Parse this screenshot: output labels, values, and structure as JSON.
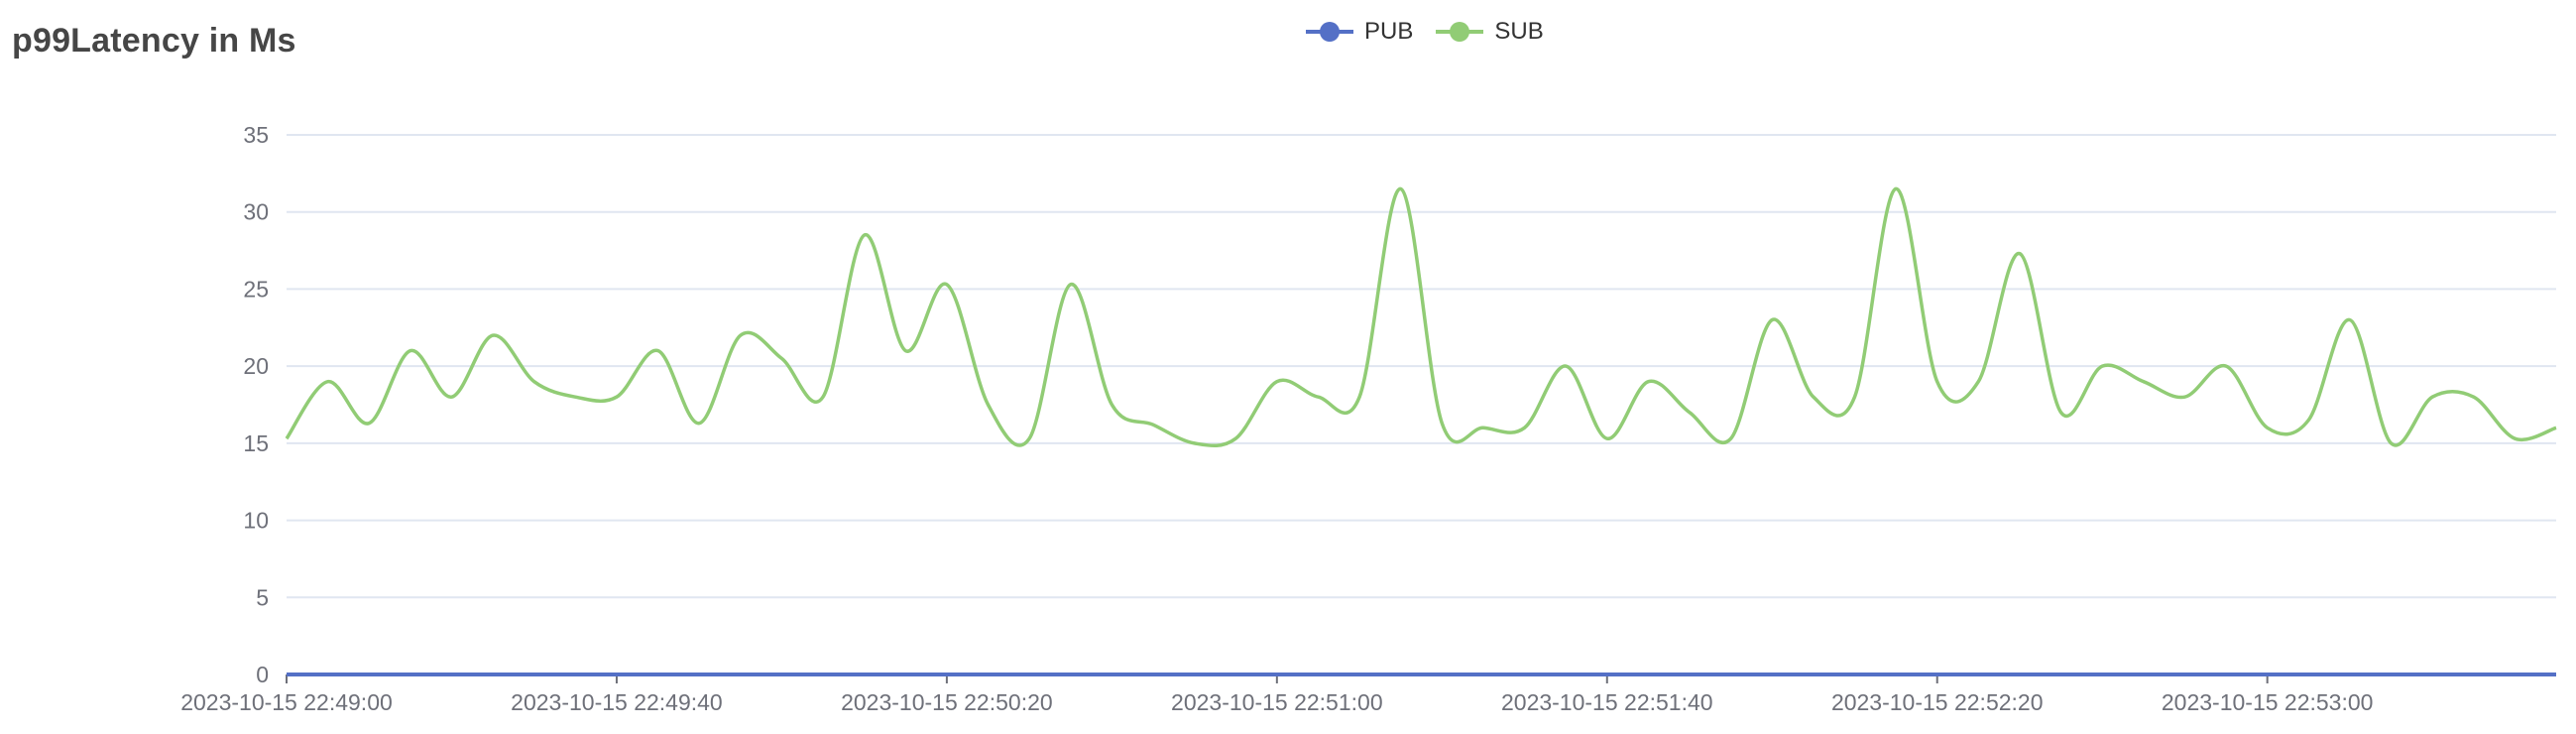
{
  "chart_data": {
    "type": "line",
    "title": "p99Latency in Ms",
    "xlabel": "",
    "ylabel": "",
    "ylim": [
      0,
      35
    ],
    "y_ticks": [
      "0",
      "5",
      "10",
      "15",
      "20",
      "25",
      "30",
      "35"
    ],
    "x_tick_labels": [
      "2023-10-15 22:49:00",
      "2023-10-15 22:49:40",
      "2023-10-15 22:50:20",
      "2023-10-15 22:51:00",
      "2023-10-15 22:51:40",
      "2023-10-15 22:52:20",
      "2023-10-15 22:53:00"
    ],
    "x_unit": "seconds after 2023-10-15 22:49:00",
    "xlim": [
      0,
      275
    ],
    "grid": true,
    "legend_position": "top-center",
    "colors": {
      "PUB": "#5470c6",
      "SUB": "#91cc75"
    },
    "series": [
      {
        "name": "PUB",
        "x": [
          0,
          275
        ],
        "values": [
          0,
          0
        ]
      },
      {
        "name": "SUB",
        "x": [
          0,
          5,
          10,
          15,
          20,
          25,
          30,
          35,
          40,
          45,
          50,
          55,
          60,
          65,
          70,
          75,
          80,
          85,
          90,
          95,
          100,
          105,
          110,
          115,
          120,
          125,
          130,
          135,
          140,
          145,
          150,
          155,
          160,
          165,
          170,
          175,
          180,
          185,
          190,
          195,
          200,
          205,
          210,
          215,
          220,
          225,
          230,
          235,
          240,
          245,
          250,
          255,
          260,
          265,
          270,
          275
        ],
        "values": [
          15.3,
          19,
          16.3,
          21,
          18,
          22,
          19,
          18,
          18,
          21,
          16.3,
          22,
          20.5,
          18,
          28.5,
          21,
          25.3,
          17.5,
          15.3,
          25.3,
          17.5,
          16.2,
          15,
          15.3,
          19,
          18,
          18,
          31.5,
          16.3,
          16,
          16,
          20,
          15.3,
          19,
          17,
          15.3,
          23,
          18,
          18,
          31.5,
          19,
          19,
          27.3,
          17,
          20,
          19,
          18,
          20,
          16,
          16.5,
          23,
          15,
          18,
          18,
          15.3,
          16
        ]
      }
    ]
  }
}
